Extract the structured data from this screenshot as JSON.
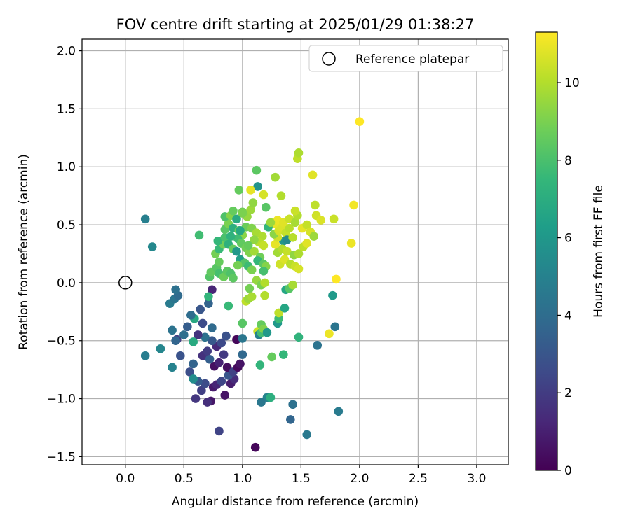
{
  "chart_data": {
    "type": "scatter",
    "title": "FOV centre drift starting at 2025/01/29 01:38:27",
    "xlabel": "Angular distance from reference (arcmin)",
    "ylabel": "Rotation from reference (arcmin)",
    "xlim": [
      -0.37,
      3.27
    ],
    "ylim": [
      -1.57,
      2.1
    ],
    "xticks": [
      0.0,
      0.5,
      1.0,
      1.5,
      2.0,
      2.5,
      3.0
    ],
    "xtick_labels": [
      "0.0",
      "0.5",
      "1.0",
      "1.5",
      "2.0",
      "2.5",
      "3.0"
    ],
    "yticks": [
      -1.5,
      -1.0,
      -0.5,
      0.0,
      0.5,
      1.0,
      1.5,
      2.0
    ],
    "ytick_labels": [
      "−1.5",
      "−1.0",
      "−0.5",
      "0.0",
      "0.5",
      "1.0",
      "1.5",
      "2.0"
    ],
    "grid": true,
    "legend": {
      "placement": "top-right",
      "entries": [
        "Reference platepar"
      ]
    },
    "reference_point": {
      "x": 0.0,
      "y": 0.0
    },
    "colorbar": {
      "label": "Hours from first FF file",
      "colormap": "viridis",
      "range": [
        0,
        11.3
      ],
      "ticks": [
        0,
        2,
        4,
        6,
        8,
        10
      ],
      "tick_labels": [
        "0",
        "2",
        "4",
        "6",
        "8",
        "10"
      ]
    },
    "points": [
      {
        "x": 1.11,
        "y": -1.42,
        "c": 0.2
      },
      {
        "x": 0.8,
        "y": -1.28,
        "c": 2.3
      },
      {
        "x": 0.73,
        "y": -1.02,
        "c": 0.7
      },
      {
        "x": 0.85,
        "y": -0.97,
        "c": 0.6
      },
      {
        "x": 0.6,
        "y": -1.0,
        "c": 1.8
      },
      {
        "x": 0.7,
        "y": -1.03,
        "c": 1.5
      },
      {
        "x": 0.65,
        "y": -0.93,
        "c": 2.1
      },
      {
        "x": 0.75,
        "y": -0.9,
        "c": 0.8
      },
      {
        "x": 0.68,
        "y": -0.87,
        "c": 2.6
      },
      {
        "x": 0.78,
        "y": -0.88,
        "c": 1.2
      },
      {
        "x": 0.82,
        "y": -0.85,
        "c": 2.4
      },
      {
        "x": 0.9,
        "y": -0.87,
        "c": 0.9
      },
      {
        "x": 0.93,
        "y": -0.83,
        "c": 1.4
      },
      {
        "x": 0.88,
        "y": -0.8,
        "c": 3.0
      },
      {
        "x": 0.62,
        "y": -0.85,
        "c": 3.2
      },
      {
        "x": 0.55,
        "y": -0.77,
        "c": 2.7
      },
      {
        "x": 0.58,
        "y": -0.7,
        "c": 3.6
      },
      {
        "x": 0.47,
        "y": -0.63,
        "c": 2.9
      },
      {
        "x": 0.66,
        "y": -0.63,
        "c": 1.6
      },
      {
        "x": 0.7,
        "y": -0.59,
        "c": 2.0
      },
      {
        "x": 0.72,
        "y": -0.66,
        "c": 3.4
      },
      {
        "x": 0.76,
        "y": -0.72,
        "c": 0.5
      },
      {
        "x": 0.8,
        "y": -0.69,
        "c": 1.1
      },
      {
        "x": 0.84,
        "y": -0.62,
        "c": 1.9
      },
      {
        "x": 0.87,
        "y": -0.73,
        "c": 0.4
      },
      {
        "x": 0.92,
        "y": -0.77,
        "c": 2.2
      },
      {
        "x": 0.96,
        "y": -0.73,
        "c": 0.3
      },
      {
        "x": 0.98,
        "y": -0.7,
        "c": 0.6
      },
      {
        "x": 1.0,
        "y": -0.62,
        "c": 3.8
      },
      {
        "x": 0.78,
        "y": -0.55,
        "c": 1.3
      },
      {
        "x": 0.82,
        "y": -0.52,
        "c": 2.5
      },
      {
        "x": 0.74,
        "y": -0.5,
        "c": 3.1
      },
      {
        "x": 0.68,
        "y": -0.47,
        "c": 4.2
      },
      {
        "x": 0.62,
        "y": -0.45,
        "c": 1.7
      },
      {
        "x": 0.86,
        "y": -0.46,
        "c": 2.8
      },
      {
        "x": 0.95,
        "y": -0.49,
        "c": 0.2
      },
      {
        "x": 1.0,
        "y": -0.48,
        "c": 4.5
      },
      {
        "x": 0.74,
        "y": -0.39,
        "c": 3.9
      },
      {
        "x": 0.58,
        "y": -0.83,
        "c": 5.5
      },
      {
        "x": 0.53,
        "y": -0.38,
        "c": 3.3
      },
      {
        "x": 0.44,
        "y": -0.49,
        "c": 2.1
      },
      {
        "x": 0.4,
        "y": -0.41,
        "c": 4.3
      },
      {
        "x": 0.43,
        "y": -0.5,
        "c": 3.7
      },
      {
        "x": 0.3,
        "y": -0.57,
        "c": 5.2
      },
      {
        "x": 0.17,
        "y": -0.63,
        "c": 4.8
      },
      {
        "x": 0.4,
        "y": -0.73,
        "c": 5.0
      },
      {
        "x": 0.66,
        "y": -0.35,
        "c": 2.6
      },
      {
        "x": 0.59,
        "y": -0.31,
        "c": 6.8
      },
      {
        "x": 0.56,
        "y": -0.28,
        "c": 4.0
      },
      {
        "x": 0.64,
        "y": -0.23,
        "c": 3.0
      },
      {
        "x": 0.71,
        "y": -0.18,
        "c": 3.6
      },
      {
        "x": 0.38,
        "y": -0.18,
        "c": 4.7
      },
      {
        "x": 0.42,
        "y": -0.14,
        "c": 4.4
      },
      {
        "x": 0.45,
        "y": -0.11,
        "c": 3.9
      },
      {
        "x": 0.43,
        "y": -0.06,
        "c": 4.2
      },
      {
        "x": 0.74,
        "y": -0.06,
        "c": 1.2
      },
      {
        "x": 0.71,
        "y": -0.12,
        "c": 7.4
      },
      {
        "x": 0.17,
        "y": 0.55,
        "c": 4.9
      },
      {
        "x": 0.23,
        "y": 0.31,
        "c": 5.3
      },
      {
        "x": 0.58,
        "y": -0.51,
        "c": 6.9
      },
      {
        "x": 0.5,
        "y": -0.45,
        "c": 4.1
      },
      {
        "x": 0.63,
        "y": 0.41,
        "c": 7.8
      },
      {
        "x": 0.72,
        "y": 0.05,
        "c": 8.2
      },
      {
        "x": 0.73,
        "y": 0.09,
        "c": 8.5
      },
      {
        "x": 0.78,
        "y": 0.13,
        "c": 8.3
      },
      {
        "x": 0.8,
        "y": 0.08,
        "c": 7.9
      },
      {
        "x": 0.84,
        "y": 0.05,
        "c": 8.7
      },
      {
        "x": 0.87,
        "y": 0.1,
        "c": 8.4
      },
      {
        "x": 0.9,
        "y": 0.08,
        "c": 8.1
      },
      {
        "x": 0.8,
        "y": 0.18,
        "c": 8.6
      },
      {
        "x": 0.77,
        "y": 0.25,
        "c": 8.9
      },
      {
        "x": 0.8,
        "y": 0.29,
        "c": 7.6
      },
      {
        "x": 0.84,
        "y": 0.33,
        "c": 8.8
      },
      {
        "x": 0.79,
        "y": 0.36,
        "c": 7.5
      },
      {
        "x": 0.85,
        "y": 0.39,
        "c": 8.0
      },
      {
        "x": 0.88,
        "y": 0.33,
        "c": 7.2
      },
      {
        "x": 0.92,
        "y": 0.29,
        "c": 8.6
      },
      {
        "x": 0.95,
        "y": 0.27,
        "c": 6.0
      },
      {
        "x": 0.85,
        "y": 0.46,
        "c": 8.3
      },
      {
        "x": 0.88,
        "y": 0.51,
        "c": 9.0
      },
      {
        "x": 0.92,
        "y": 0.47,
        "c": 7.1
      },
      {
        "x": 0.97,
        "y": 0.45,
        "c": 8.7
      },
      {
        "x": 1.0,
        "y": 0.41,
        "c": 9.3
      },
      {
        "x": 0.96,
        "y": 0.38,
        "c": 7.8
      },
      {
        "x": 0.99,
        "y": 0.34,
        "c": 8.5
      },
      {
        "x": 1.03,
        "y": 0.3,
        "c": 8.8
      },
      {
        "x": 1.06,
        "y": 0.26,
        "c": 9.1
      },
      {
        "x": 0.98,
        "y": 0.2,
        "c": 6.4
      },
      {
        "x": 1.02,
        "y": 0.17,
        "c": 8.2
      },
      {
        "x": 1.05,
        "y": 0.14,
        "c": 7.7
      },
      {
        "x": 1.08,
        "y": 0.11,
        "c": 9.0
      },
      {
        "x": 0.96,
        "y": 0.15,
        "c": 8.9
      },
      {
        "x": 0.92,
        "y": 0.04,
        "c": 8.4
      },
      {
        "x": 0.85,
        "y": 0.57,
        "c": 8.1
      },
      {
        "x": 0.9,
        "y": 0.58,
        "c": 9.2
      },
      {
        "x": 0.92,
        "y": 0.62,
        "c": 8.6
      },
      {
        "x": 0.95,
        "y": 0.55,
        "c": 6.9
      },
      {
        "x": 1.0,
        "y": 0.61,
        "c": 8.8
      },
      {
        "x": 1.04,
        "y": 0.57,
        "c": 9.5
      },
      {
        "x": 1.07,
        "y": 0.63,
        "c": 9.6
      },
      {
        "x": 1.09,
        "y": 0.69,
        "c": 9.4
      },
      {
        "x": 1.03,
        "y": 0.48,
        "c": 8.7
      },
      {
        "x": 1.08,
        "y": 0.47,
        "c": 9.1
      },
      {
        "x": 1.12,
        "y": 0.43,
        "c": 9.8
      },
      {
        "x": 1.17,
        "y": 0.4,
        "c": 9.9
      },
      {
        "x": 1.14,
        "y": 0.35,
        "c": 10.1
      },
      {
        "x": 1.18,
        "y": 0.32,
        "c": 10.3
      },
      {
        "x": 1.1,
        "y": 0.27,
        "c": 9.7
      },
      {
        "x": 1.15,
        "y": 0.22,
        "c": 8.8
      },
      {
        "x": 1.13,
        "y": 0.19,
        "c": 7.5
      },
      {
        "x": 1.18,
        "y": 0.16,
        "c": 8.4
      },
      {
        "x": 1.2,
        "y": 0.14,
        "c": 9.2
      },
      {
        "x": 1.12,
        "y": 0.02,
        "c": 9.5
      },
      {
        "x": 1.16,
        "y": -0.02,
        "c": 9.0
      },
      {
        "x": 1.19,
        "y": 0.0,
        "c": 10.0
      },
      {
        "x": 1.06,
        "y": -0.05,
        "c": 8.9
      },
      {
        "x": 1.03,
        "y": -0.16,
        "c": 10.2
      },
      {
        "x": 1.05,
        "y": -0.14,
        "c": 9.6
      },
      {
        "x": 1.19,
        "y": -0.11,
        "c": 10.0
      },
      {
        "x": 1.0,
        "y": -0.35,
        "c": 8.3
      },
      {
        "x": 1.13,
        "y": -0.42,
        "c": 10.4
      },
      {
        "x": 1.14,
        "y": -0.45,
        "c": 5.0
      },
      {
        "x": 1.16,
        "y": -0.43,
        "c": 7.8
      },
      {
        "x": 1.16,
        "y": -0.36,
        "c": 8.6
      },
      {
        "x": 1.18,
        "y": -0.4,
        "c": 9.1
      },
      {
        "x": 1.21,
        "y": -0.43,
        "c": 6.0
      },
      {
        "x": 1.25,
        "y": -0.64,
        "c": 8.6
      },
      {
        "x": 1.15,
        "y": -0.71,
        "c": 7.4
      },
      {
        "x": 1.21,
        "y": -0.99,
        "c": 5.1
      },
      {
        "x": 1.24,
        "y": -0.99,
        "c": 7.1
      },
      {
        "x": 1.16,
        "y": -1.03,
        "c": 4.5
      },
      {
        "x": 1.3,
        "y": -0.35,
        "c": 6.0
      },
      {
        "x": 1.31,
        "y": -0.31,
        "c": 7.7
      },
      {
        "x": 1.31,
        "y": -0.26,
        "c": 10.2
      },
      {
        "x": 1.36,
        "y": -0.22,
        "c": 6.7
      },
      {
        "x": 1.35,
        "y": -0.62,
        "c": 7.5
      },
      {
        "x": 1.43,
        "y": -1.05,
        "c": 4.2
      },
      {
        "x": 1.41,
        "y": -1.18,
        "c": 3.7
      },
      {
        "x": 1.55,
        "y": -1.31,
        "c": 4.6
      },
      {
        "x": 1.48,
        "y": -0.47,
        "c": 7.3
      },
      {
        "x": 1.64,
        "y": -0.54,
        "c": 4.3
      },
      {
        "x": 1.74,
        "y": -0.44,
        "c": 11.0
      },
      {
        "x": 1.77,
        "y": -0.11,
        "c": 6.1
      },
      {
        "x": 1.79,
        "y": -0.38,
        "c": 4.4
      },
      {
        "x": 1.82,
        "y": -1.11,
        "c": 4.7
      },
      {
        "x": 1.8,
        "y": 0.03,
        "c": 11.3
      },
      {
        "x": 1.37,
        "y": -0.06,
        "c": 6.7
      },
      {
        "x": 1.4,
        "y": -0.05,
        "c": 8.3
      },
      {
        "x": 1.43,
        "y": -0.02,
        "c": 9.8
      },
      {
        "x": 1.35,
        "y": 0.36,
        "c": 5.9
      },
      {
        "x": 1.32,
        "y": 0.16,
        "c": 10.5
      },
      {
        "x": 1.36,
        "y": 0.2,
        "c": 10.7
      },
      {
        "x": 1.41,
        "y": 0.16,
        "c": 10.1
      },
      {
        "x": 1.45,
        "y": 0.14,
        "c": 10.4
      },
      {
        "x": 1.48,
        "y": 0.12,
        "c": 10.6
      },
      {
        "x": 1.3,
        "y": 0.26,
        "c": 9.7
      },
      {
        "x": 1.34,
        "y": 0.29,
        "c": 10.0
      },
      {
        "x": 1.38,
        "y": 0.27,
        "c": 10.3
      },
      {
        "x": 1.44,
        "y": 0.24,
        "c": 9.4
      },
      {
        "x": 1.48,
        "y": 0.25,
        "c": 9.9
      },
      {
        "x": 1.52,
        "y": 0.31,
        "c": 10.2
      },
      {
        "x": 1.55,
        "y": 0.34,
        "c": 10.8
      },
      {
        "x": 1.28,
        "y": 0.33,
        "c": 10.9
      },
      {
        "x": 1.3,
        "y": 0.39,
        "c": 10.5
      },
      {
        "x": 1.27,
        "y": 0.42,
        "c": 9.3
      },
      {
        "x": 1.31,
        "y": 0.45,
        "c": 10.6
      },
      {
        "x": 1.33,
        "y": 0.48,
        "c": 10.7
      },
      {
        "x": 1.37,
        "y": 0.43,
        "c": 10.3
      },
      {
        "x": 1.4,
        "y": 0.47,
        "c": 10.1
      },
      {
        "x": 1.27,
        "y": 0.51,
        "c": 10.9
      },
      {
        "x": 1.3,
        "y": 0.54,
        "c": 11.0
      },
      {
        "x": 1.35,
        "y": 0.52,
        "c": 10.8
      },
      {
        "x": 1.4,
        "y": 0.55,
        "c": 10.4
      },
      {
        "x": 1.45,
        "y": 0.52,
        "c": 9.8
      },
      {
        "x": 1.47,
        "y": 0.58,
        "c": 10.0
      },
      {
        "x": 1.51,
        "y": 0.47,
        "c": 10.9
      },
      {
        "x": 1.55,
        "y": 0.5,
        "c": 10.3
      },
      {
        "x": 1.58,
        "y": 0.44,
        "c": 10.6
      },
      {
        "x": 1.61,
        "y": 0.4,
        "c": 9.6
      },
      {
        "x": 1.63,
        "y": 0.58,
        "c": 10.5
      },
      {
        "x": 1.62,
        "y": 0.67,
        "c": 10.2
      },
      {
        "x": 1.67,
        "y": 0.54,
        "c": 10.7
      },
      {
        "x": 1.78,
        "y": 0.55,
        "c": 10.4
      },
      {
        "x": 1.93,
        "y": 0.34,
        "c": 11.0
      },
      {
        "x": 1.95,
        "y": 0.67,
        "c": 11.1
      },
      {
        "x": 2.0,
        "y": 1.39,
        "c": 11.3
      },
      {
        "x": 1.47,
        "y": 1.07,
        "c": 10.2
      },
      {
        "x": 1.48,
        "y": 1.12,
        "c": 9.9
      },
      {
        "x": 1.6,
        "y": 0.93,
        "c": 10.8
      },
      {
        "x": 1.45,
        "y": 0.62,
        "c": 10.4
      },
      {
        "x": 1.28,
        "y": 0.91,
        "c": 9.7
      },
      {
        "x": 1.33,
        "y": 0.75,
        "c": 10.0
      },
      {
        "x": 1.12,
        "y": 0.97,
        "c": 8.4
      },
      {
        "x": 1.13,
        "y": 0.83,
        "c": 5.8
      },
      {
        "x": 1.18,
        "y": 0.76,
        "c": 10.6
      },
      {
        "x": 1.07,
        "y": 0.8,
        "c": 10.9
      },
      {
        "x": 0.97,
        "y": 0.8,
        "c": 8.6
      },
      {
        "x": 1.2,
        "y": 0.65,
        "c": 8.3
      },
      {
        "x": 1.22,
        "y": 0.48,
        "c": 7.4
      },
      {
        "x": 1.24,
        "y": 0.52,
        "c": 9.6
      },
      {
        "x": 1.0,
        "y": 0.6,
        "c": 9.0
      },
      {
        "x": 1.1,
        "y": 0.37,
        "c": 9.4
      },
      {
        "x": 1.18,
        "y": 0.1,
        "c": 7.9
      },
      {
        "x": 1.05,
        "y": 0.32,
        "c": 8.6
      },
      {
        "x": 0.98,
        "y": 0.45,
        "c": 6.8
      },
      {
        "x": 0.9,
        "y": 0.4,
        "c": 7.3
      },
      {
        "x": 1.38,
        "y": 0.37,
        "c": 5.4
      },
      {
        "x": 1.43,
        "y": 0.39,
        "c": 10.1
      },
      {
        "x": 1.08,
        "y": -0.12,
        "c": 9.8
      },
      {
        "x": 0.88,
        "y": -0.2,
        "c": 7.6
      }
    ]
  }
}
